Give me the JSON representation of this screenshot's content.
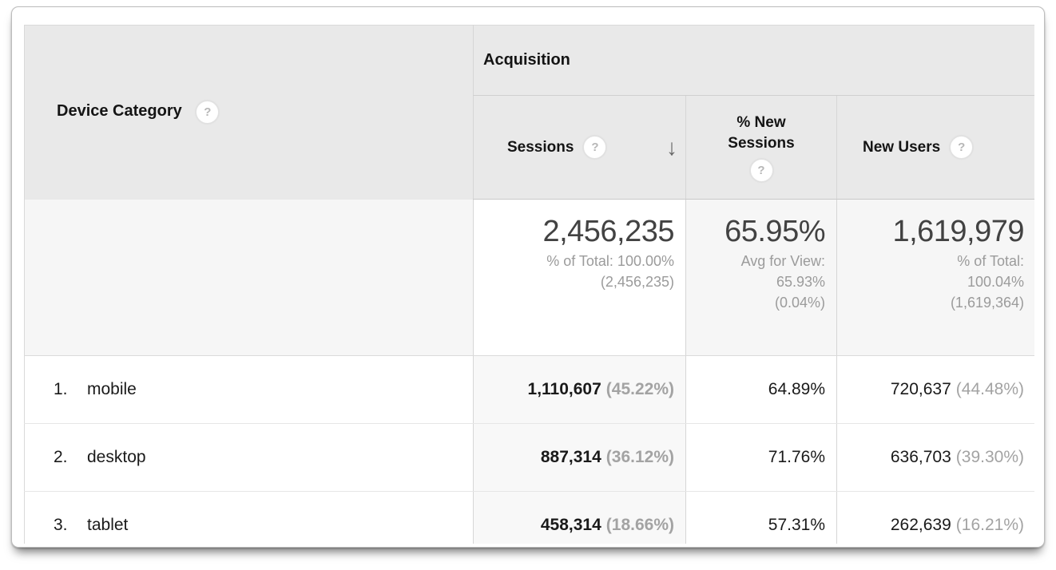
{
  "icons": {
    "help": "?",
    "sort_desc": "↓"
  },
  "table": {
    "dimension_header": "Device Category",
    "group_header": "Acquisition",
    "columns": {
      "sessions": "Sessions",
      "pct_new_sessions": "% New Sessions",
      "new_users": "New Users"
    },
    "summary": {
      "sessions": {
        "value": "2,456,235",
        "line1": "% of Total: 100.00%",
        "line2": "(2,456,235)"
      },
      "pct_new_sessions": {
        "value": "65.95%",
        "line1": "Avg for View:",
        "line2": "65.93%",
        "line3": "(0.04%)"
      },
      "new_users": {
        "value": "1,619,979",
        "line1": "% of Total:",
        "line2": "100.04%",
        "line3": "(1,619,364)"
      }
    },
    "rows": [
      {
        "rank": "1.",
        "device": "mobile",
        "sessions": "1,110,607",
        "sessions_pct": "(45.22%)",
        "pct_new_sessions": "64.89%",
        "new_users": "720,637",
        "new_users_pct": "(44.48%)"
      },
      {
        "rank": "2.",
        "device": "desktop",
        "sessions": "887,314",
        "sessions_pct": "(36.12%)",
        "pct_new_sessions": "71.76%",
        "new_users": "636,703",
        "new_users_pct": "(39.30%)"
      },
      {
        "rank": "3.",
        "device": "tablet",
        "sessions": "458,314",
        "sessions_pct": "(18.66%)",
        "pct_new_sessions": "57.31%",
        "new_users": "262,639",
        "new_users_pct": "(16.21%)"
      }
    ],
    "colors": {
      "header_bg": "#e9e9e9",
      "sorted_cell_bg": "#f8f8f8",
      "summary_shaded_bg": "#f6f6f6",
      "secondary_text": "#9b9b9b"
    }
  }
}
